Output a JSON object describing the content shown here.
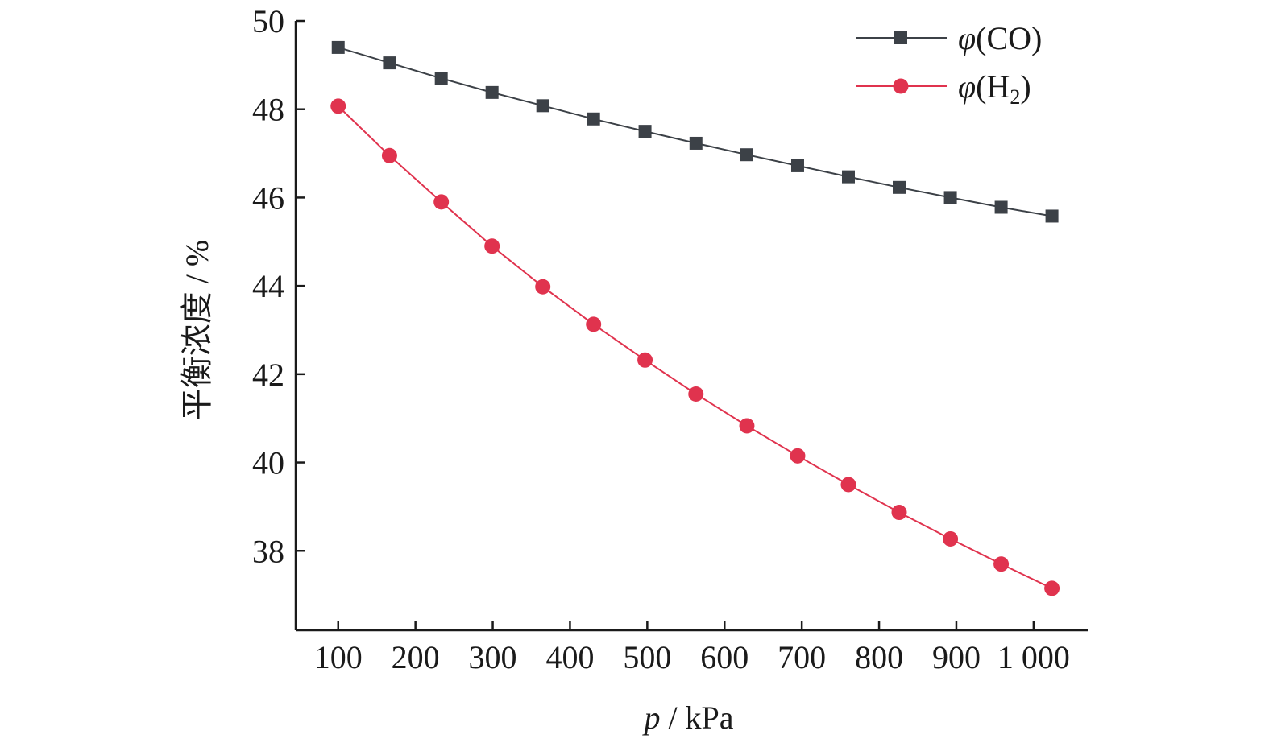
{
  "chart_data": {
    "type": "line",
    "xlabel_var": "p",
    "xlabel_unit": " / kPa",
    "ylabel": "平衡浓度 / %",
    "x_ticks": [
      100,
      200,
      300,
      400,
      500,
      600,
      700,
      800,
      900,
      1000
    ],
    "x_tick_labels": [
      "100",
      "200",
      "300",
      "400",
      "500",
      "600",
      "700",
      "800",
      "900",
      "1 000"
    ],
    "y_ticks": [
      38,
      40,
      42,
      44,
      46,
      48,
      50
    ],
    "y_tick_labels": [
      "38",
      "40",
      "42",
      "44",
      "46",
      "48",
      "50"
    ],
    "xlim": [
      45,
      1070
    ],
    "ylim": [
      36.2,
      50
    ],
    "legend_position": "top-right",
    "x": [
      100,
      166.4,
      233.4,
      299.1,
      364.8,
      430.5,
      497.1,
      563.0,
      628.9,
      694.6,
      760.3,
      826.0,
      892.3,
      958.0,
      1023.7
    ],
    "series": [
      {
        "legend_prefix": "φ",
        "legend_main": "(CO)",
        "legend_sub": "",
        "legend_suffix": "",
        "marker": "square",
        "color": "#3c4147",
        "values": [
          49.4,
          49.05,
          48.7,
          48.38,
          48.08,
          47.78,
          47.5,
          47.23,
          46.97,
          46.72,
          46.47,
          46.23,
          46.0,
          45.78,
          45.58
        ]
      },
      {
        "legend_prefix": "φ",
        "legend_main": "(H",
        "legend_sub": "2",
        "legend_suffix": ")",
        "marker": "circle",
        "color": "#e0334e",
        "values": [
          48.07,
          46.95,
          45.9,
          44.9,
          43.98,
          43.13,
          42.32,
          41.55,
          40.83,
          40.15,
          39.5,
          38.87,
          38.27,
          37.7,
          37.15
        ]
      }
    ]
  }
}
